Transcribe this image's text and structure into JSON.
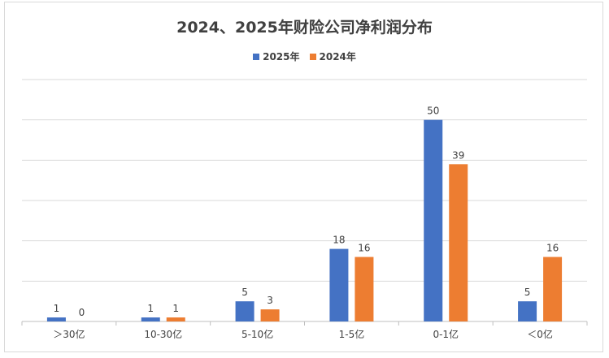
{
  "chart_data": {
    "type": "bar",
    "title": "2024、2025年财险公司净利润分布",
    "categories": [
      "＞30亿",
      "10-30亿",
      "5-10亿",
      "1-5亿",
      "0-1亿",
      "＜0亿"
    ],
    "series": [
      {
        "name": "2025年",
        "values": [
          1,
          1,
          5,
          18,
          50,
          5
        ],
        "color": "#4472c4"
      },
      {
        "name": "2024年",
        "values": [
          0,
          1,
          3,
          16,
          39,
          16
        ],
        "color": "#ed7d31"
      }
    ],
    "xlabel": "",
    "ylabel": "",
    "ylim": [
      0,
      60
    ],
    "yticks": [
      0,
      10,
      20,
      30,
      40,
      50,
      60
    ],
    "grid": true,
    "legend_position": "top"
  }
}
